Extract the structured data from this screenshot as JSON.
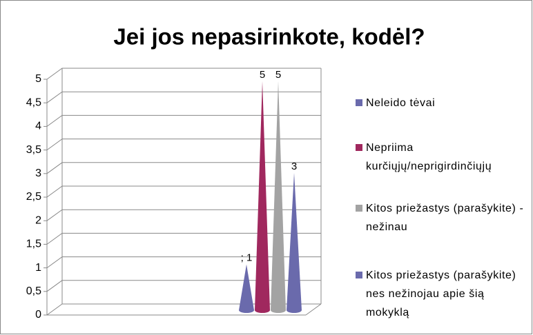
{
  "chart_data": {
    "type": "cone",
    "title": "Jei jos nepasirinkote, kodėl?",
    "categories": [
      null
    ],
    "series": [
      {
        "name": "Neleido tėvai",
        "color": "#6a6aac",
        "values": [
          1
        ],
        "value_labels": [
          "; 1"
        ]
      },
      {
        "name": "Nepriima kurčiųjų/neprigirdinčiųjų",
        "color": "#a0285e",
        "values": [
          5
        ]
      },
      {
        "name": "Kitos priežastys (parašykite) -nežinau",
        "color": "#a3a3a3",
        "values": [
          5
        ]
      },
      {
        "name": "Kitos priežastys (parašykite) nes nežinojau apie šią mokyklą",
        "color": "#6a6aac",
        "values": [
          3
        ]
      }
    ],
    "ylim": [
      0,
      5
    ],
    "yticks": [
      0,
      {
        "value": 0.5,
        "label": "0,5"
      },
      1,
      {
        "value": 1.5,
        "label": "1,5"
      },
      2,
      {
        "value": 2.5,
        "label": "2,5"
      },
      3,
      {
        "value": 3.5,
        "label": "3,5"
      },
      4,
      {
        "value": 4.5,
        "label": "4,5"
      },
      5
    ],
    "grid": true
  }
}
